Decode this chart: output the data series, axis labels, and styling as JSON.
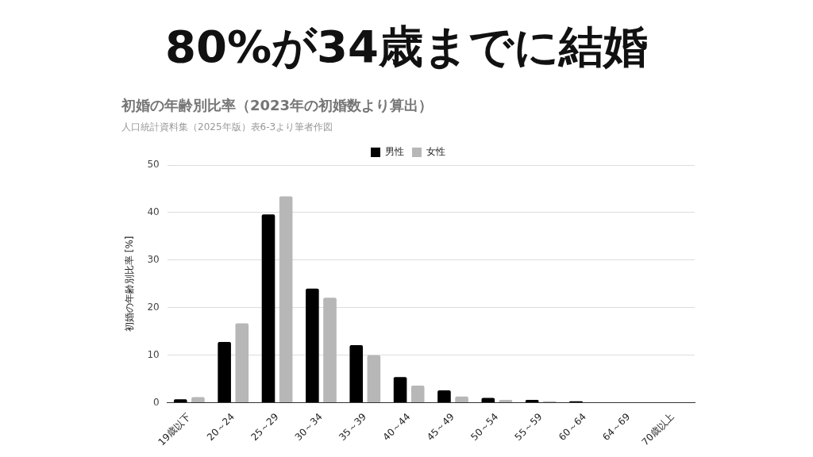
{
  "chart_data": {
    "type": "bar",
    "title": "80%が34歳までに結婚",
    "subtitle": "初婚の年齢別比率（2023年の初婚数より算出）",
    "annotations": [
      "人口統計資料集（2025年版）表6-3より筆者作図"
    ],
    "ylabel": "初婚の年齢別比率 [%]",
    "categories": [
      "19歳以下",
      "20～24",
      "25～29",
      "30～34",
      "35～39",
      "40～44",
      "45～49",
      "50～54",
      "55～59",
      "60～64",
      "64～69",
      "70歳以上"
    ],
    "series": [
      {
        "name": "男性",
        "color": "#000000",
        "values": [
          0.7,
          12.8,
          39.6,
          24.0,
          12.1,
          5.4,
          2.6,
          1.0,
          0.6,
          0.3,
          0.1,
          0.0
        ]
      },
      {
        "name": "女性",
        "color": "#b7b7b7",
        "values": [
          1.2,
          16.7,
          43.4,
          22.1,
          10.0,
          3.6,
          1.3,
          0.6,
          0.3,
          null,
          0.0,
          0.0
        ]
      }
    ],
    "ylim": [
      0,
      50
    ],
    "yticks": [
      0,
      10,
      20,
      30,
      40,
      50
    ],
    "grid": "y",
    "legend": "top"
  }
}
